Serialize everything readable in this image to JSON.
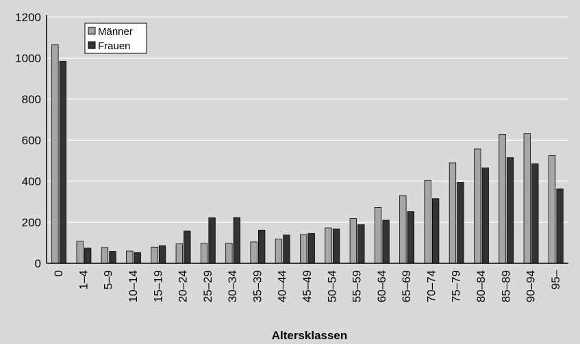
{
  "chart_data": {
    "type": "bar",
    "title": "",
    "xlabel": "Altersklassen",
    "ylabel": "",
    "ylim": [
      0,
      1200
    ],
    "yticks": [
      0,
      200,
      400,
      600,
      800,
      1000,
      1200
    ],
    "grid": true,
    "legend_position": "top-left",
    "categories": [
      "0",
      "1–4",
      "5–9",
      "10–14",
      "15–19",
      "20–24",
      "25–29",
      "30–34",
      "35–39",
      "40–44",
      "45–49",
      "50–54",
      "55–59",
      "60–64",
      "65–69",
      "70–74",
      "75–79",
      "80–84",
      "85–89",
      "90–94",
      "95–"
    ],
    "series": [
      {
        "name": "Männer",
        "color": "#a6a6a6",
        "values": [
          1065,
          108,
          77,
          60,
          79,
          95,
          97,
          98,
          104,
          118,
          140,
          173,
          218,
          272,
          330,
          405,
          490,
          557,
          628,
          632,
          525
        ]
      },
      {
        "name": "Frauen",
        "color": "#333333",
        "values": [
          985,
          74,
          58,
          52,
          86,
          157,
          222,
          223,
          162,
          138,
          145,
          167,
          188,
          210,
          252,
          315,
          395,
          465,
          515,
          485,
          363
        ]
      }
    ]
  }
}
